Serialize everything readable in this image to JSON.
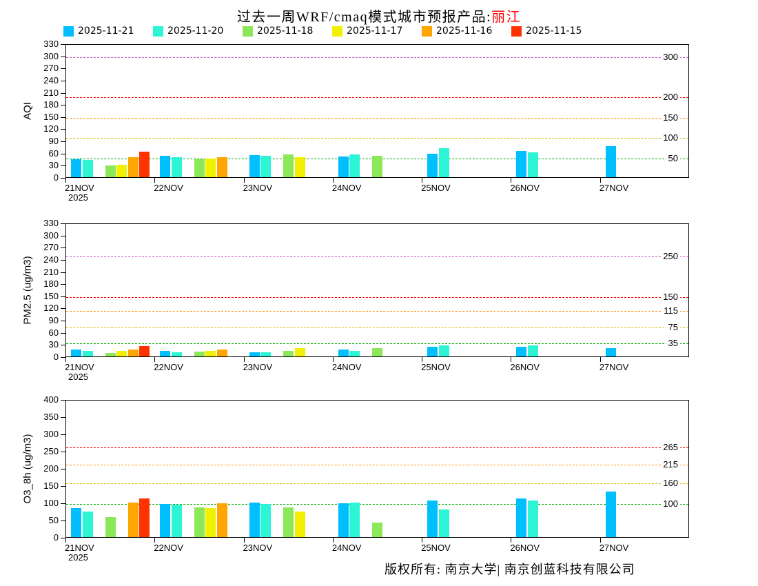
{
  "title": {
    "prefix": "过去一周WRF/cmaq模式城市预报产品:",
    "city": "丽江",
    "city_color": "#ff0000"
  },
  "legend": [
    {
      "label": "2025-11-21",
      "color": "#00BFFF"
    },
    {
      "label": "2025-11-20",
      "color": "#2BF5D5"
    },
    {
      "label": "2025-11-18",
      "color": "#8CE858"
    },
    {
      "label": "2025-11-17",
      "color": "#F0F000"
    },
    {
      "label": "2025-11-16",
      "color": "#FFA500"
    },
    {
      "label": "2025-11-15",
      "color": "#FF3300"
    }
  ],
  "x_sublabel": "2025",
  "footer": "版权所有: 南京大学| 南京创蓝科技有限公司",
  "chart_data": [
    {
      "type": "bar",
      "title": "",
      "ylabel": "AQI",
      "xlabel": "",
      "ylim": [
        0,
        330
      ],
      "ytick_step": 30,
      "grid": false,
      "legend_position": "top",
      "categories": [
        "21NOV",
        "22NOV",
        "23NOV",
        "24NOV",
        "25NOV",
        "26NOV",
        "27NOV"
      ],
      "reference_lines": [
        {
          "value": 50,
          "color": "#00A800",
          "label": "50"
        },
        {
          "value": 100,
          "color": "#E0C000",
          "label": "100"
        },
        {
          "value": 150,
          "color": "#FF9500",
          "label": "150"
        },
        {
          "value": 200,
          "color": "#FF0000",
          "label": "200"
        },
        {
          "value": 300,
          "color": "#CC55CC",
          "label": "300"
        }
      ],
      "series": [
        {
          "name": "2025-11-21",
          "color": "#00BFFF",
          "values": [
            44,
            52,
            55,
            51,
            58,
            65,
            76
          ]
        },
        {
          "name": "2025-11-20",
          "color": "#2BF5D5",
          "values": [
            42,
            50,
            52,
            56,
            72,
            62,
            null
          ]
        },
        {
          "name": "2025-11-18",
          "color": "#8CE858",
          "values": [
            29,
            45,
            56,
            53,
            null,
            null,
            null
          ]
        },
        {
          "name": "2025-11-17",
          "color": "#F0F000",
          "values": [
            31,
            46,
            49,
            null,
            null,
            null,
            null
          ]
        },
        {
          "name": "2025-11-16",
          "color": "#FFA500",
          "values": [
            50,
            49,
            null,
            null,
            null,
            null,
            null
          ]
        },
        {
          "name": "2025-11-15",
          "color": "#FF3300",
          "values": [
            63,
            null,
            null,
            null,
            null,
            null,
            null
          ]
        }
      ]
    },
    {
      "type": "bar",
      "title": "",
      "ylabel": "PM2.5 (ug/m3)",
      "xlabel": "",
      "ylim": [
        0,
        330
      ],
      "ytick_step": 30,
      "grid": false,
      "legend_position": "top",
      "categories": [
        "21NOV",
        "22NOV",
        "23NOV",
        "24NOV",
        "25NOV",
        "26NOV",
        "27NOV"
      ],
      "reference_lines": [
        {
          "value": 35,
          "color": "#00A800",
          "label": "35"
        },
        {
          "value": 75,
          "color": "#E0C000",
          "label": "75"
        },
        {
          "value": 115,
          "color": "#FF9500",
          "label": "115"
        },
        {
          "value": 150,
          "color": "#FF0000",
          "label": "150"
        },
        {
          "value": 250,
          "color": "#CC55CC",
          "label": "250"
        }
      ],
      "series": [
        {
          "name": "2025-11-21",
          "color": "#00BFFF",
          "values": [
            17,
            14,
            11,
            17,
            24,
            24,
            20
          ]
        },
        {
          "name": "2025-11-20",
          "color": "#2BF5D5",
          "values": [
            14,
            11,
            11,
            14,
            28,
            28,
            null
          ]
        },
        {
          "name": "2025-11-18",
          "color": "#8CE858",
          "values": [
            9,
            12,
            14,
            21,
            null,
            null,
            null
          ]
        },
        {
          "name": "2025-11-17",
          "color": "#F0F000",
          "values": [
            13,
            14,
            21,
            null,
            null,
            null,
            null
          ]
        },
        {
          "name": "2025-11-16",
          "color": "#FFA500",
          "values": [
            17,
            17,
            null,
            null,
            null,
            null,
            null
          ]
        },
        {
          "name": "2025-11-15",
          "color": "#FF3300",
          "values": [
            25,
            null,
            null,
            null,
            null,
            null,
            null
          ]
        }
      ]
    },
    {
      "type": "bar",
      "title": "",
      "ylabel": "O3_8h (ug/m3)",
      "xlabel": "",
      "ylim": [
        0,
        400
      ],
      "ytick_step": 50,
      "grid": false,
      "legend_position": "top",
      "categories": [
        "21NOV",
        "22NOV",
        "23NOV",
        "24NOV",
        "25NOV",
        "26NOV",
        "27NOV"
      ],
      "reference_lines": [
        {
          "value": 100,
          "color": "#00A800",
          "label": "100"
        },
        {
          "value": 160,
          "color": "#E0C000",
          "label": "160"
        },
        {
          "value": 215,
          "color": "#FF9500",
          "label": "215"
        },
        {
          "value": 265,
          "color": "#FF0000",
          "label": "265"
        }
      ],
      "series": [
        {
          "name": "2025-11-21",
          "color": "#00BFFF",
          "values": [
            84,
            97,
            101,
            99,
            107,
            113,
            132
          ]
        },
        {
          "name": "2025-11-20",
          "color": "#2BF5D5",
          "values": [
            74,
            94,
            97,
            101,
            80,
            106,
            null
          ]
        },
        {
          "name": "2025-11-18",
          "color": "#8CE858",
          "values": [
            59,
            86,
            87,
            42,
            null,
            null,
            null
          ]
        },
        {
          "name": "2025-11-17",
          "color": "#F0F000",
          "values": [
            null,
            84,
            74,
            null,
            null,
            null,
            null
          ]
        },
        {
          "name": "2025-11-16",
          "color": "#FFA500",
          "values": [
            100,
            99,
            null,
            null,
            null,
            null,
            null
          ]
        },
        {
          "name": "2025-11-15",
          "color": "#FF3300",
          "values": [
            113,
            null,
            null,
            null,
            null,
            null,
            null
          ]
        }
      ]
    }
  ]
}
